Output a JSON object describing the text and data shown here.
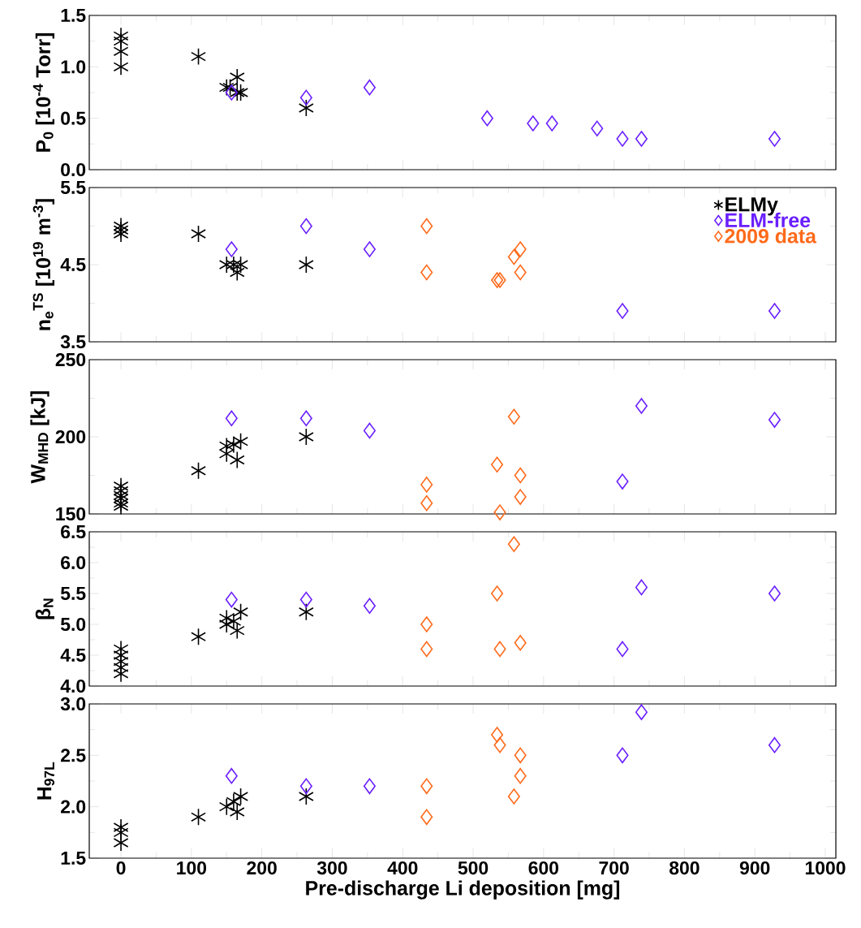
{
  "chart_data": [
    {
      "type": "scatter",
      "ylabel": "P$_{0}$ [10$^{-4}$ Torr]",
      "xlim": [
        -45,
        1015
      ],
      "xticks": [
        0,
        100,
        200,
        300,
        400,
        500,
        600,
        700,
        800,
        900,
        1000
      ],
      "ylim": [
        0,
        1.5
      ],
      "yticks": [
        {
          "value": 0,
          "label": "0.0"
        },
        0.5,
        {
          "value": 1,
          "label": "1.0"
        },
        1.5
      ],
      "tick_labels": "y",
      "series": [
        {
          "color": "#000000",
          "marker": "cross",
          "x": [
            0,
            0,
            0,
            0,
            110,
            150,
            155,
            165,
            165,
            170,
            263
          ],
          "values": [
            1.3,
            1.25,
            1.15,
            1.0,
            1.1,
            0.8,
            0.8,
            0.9,
            0.75,
            0.75,
            0.6
          ]
        },
        {
          "color": "#6a1fff",
          "marker": "diamond",
          "x": [
            157,
            263,
            353,
            520,
            585,
            612,
            676,
            712,
            739,
            928
          ],
          "values": [
            0.75,
            0.7,
            0.8,
            0.5,
            0.45,
            0.45,
            0.4,
            0.3,
            0.3,
            0.3
          ]
        }
      ]
    },
    {
      "type": "scatter",
      "ylabel": "n$_{e}$$^{TS}$ [10$^{19}$ m$^{-3}$]",
      "xlim": [
        -45,
        1015
      ],
      "xticks": [
        0,
        100,
        200,
        300,
        400,
        500,
        600,
        700,
        800,
        900,
        1000
      ],
      "ylim": [
        3.5,
        5.5
      ],
      "yticks": [
        3.5,
        4.5,
        5.5
      ],
      "tick_labels": "y",
      "legend": "top right",
      "series": [
        {
          "name": "ELMy",
          "color": "#000000",
          "marker": "cross",
          "x": [
            0,
            0,
            0,
            110,
            150,
            160,
            165,
            170,
            263
          ],
          "values": [
            5.0,
            4.95,
            4.9,
            4.9,
            4.5,
            4.5,
            4.4,
            4.5,
            4.5
          ]
        },
        {
          "name": "ELM-free",
          "color": "#6a1fff",
          "marker": "diamond",
          "x": [
            157,
            263,
            353,
            712,
            928
          ],
          "values": [
            4.7,
            5.0,
            4.7,
            3.9,
            3.9
          ]
        },
        {
          "name": "2009 data",
          "color": "#ff6a1a",
          "marker": "diamond",
          "x": [
            434,
            434,
            534,
            538,
            558,
            567,
            567
          ],
          "values": [
            5.0,
            4.4,
            4.3,
            4.3,
            4.6,
            4.7,
            4.4
          ]
        }
      ]
    },
    {
      "type": "scatter",
      "ylabel": "W$_{MHD}$ [kJ]",
      "xlim": [
        -45,
        1015
      ],
      "xticks": [
        0,
        100,
        200,
        300,
        400,
        500,
        600,
        700,
        800,
        900,
        1000
      ],
      "ylim": [
        150,
        250
      ],
      "yticks": [
        150,
        200,
        250
      ],
      "tick_labels": "y",
      "series": [
        {
          "color": "#000000",
          "marker": "cross",
          "x": [
            0,
            0,
            0,
            0,
            0,
            0,
            110,
            150,
            150,
            160,
            165,
            170,
            263
          ],
          "values": [
            168,
            165,
            162,
            160,
            157,
            155,
            178,
            189,
            194,
            195,
            185,
            197,
            200
          ]
        },
        {
          "color": "#6a1fff",
          "marker": "diamond",
          "x": [
            157,
            263,
            353,
            712,
            739,
            928
          ],
          "values": [
            212,
            212,
            204,
            171,
            220,
            211
          ]
        },
        {
          "color": "#ff6a1a",
          "marker": "diamond",
          "x": [
            434,
            434,
            534,
            538,
            558,
            567,
            567
          ],
          "values": [
            169,
            157,
            182,
            151,
            213,
            175,
            161
          ]
        }
      ]
    },
    {
      "type": "scatter",
      "ylabel": "β$_{N}$",
      "xlim": [
        -45,
        1015
      ],
      "xticks": [
        0,
        100,
        200,
        300,
        400,
        500,
        600,
        700,
        800,
        900,
        1000
      ],
      "ylim": [
        4,
        6.5
      ],
      "yticks": [
        {
          "value": 4,
          "label": "4.0"
        },
        4.5,
        {
          "value": 5,
          "label": "5.0"
        },
        5.5,
        {
          "value": 6,
          "label": "6.0"
        },
        6.5
      ],
      "tick_labels": "y",
      "series": [
        {
          "color": "#000000",
          "marker": "cross",
          "x": [
            0,
            0,
            0,
            0,
            0,
            110,
            150,
            150,
            160,
            165,
            170,
            263
          ],
          "values": [
            4.6,
            4.5,
            4.4,
            4.3,
            4.2,
            4.8,
            5.0,
            5.1,
            5.05,
            4.9,
            5.2,
            5.2
          ]
        },
        {
          "color": "#6a1fff",
          "marker": "diamond",
          "x": [
            157,
            263,
            353,
            712,
            739,
            928
          ],
          "values": [
            5.4,
            5.4,
            5.3,
            4.6,
            5.6,
            5.5
          ]
        },
        {
          "color": "#ff6a1a",
          "marker": "diamond",
          "x": [
            434,
            434,
            534,
            538,
            558,
            567
          ],
          "values": [
            5.0,
            4.6,
            5.5,
            4.6,
            6.3,
            4.7
          ]
        }
      ]
    },
    {
      "type": "scatter",
      "ylabel": "H$_{97L}$",
      "xlabel": "Pre-discharge Li deposition [mg]",
      "xlim": [
        -45,
        1015
      ],
      "xticks": [
        0,
        100,
        200,
        300,
        400,
        500,
        600,
        700,
        800,
        900,
        1000
      ],
      "ylim": [
        1.5,
        3
      ],
      "yticks": [
        1.5,
        {
          "value": 2,
          "label": "2.0"
        },
        2.5,
        {
          "value": 3,
          "label": "3.0"
        }
      ],
      "series": [
        {
          "color": "#000000",
          "marker": "cross",
          "x": [
            0,
            0,
            0,
            110,
            150,
            160,
            165,
            170,
            263
          ],
          "values": [
            1.8,
            1.75,
            1.65,
            1.9,
            2.0,
            2.05,
            1.95,
            2.1,
            2.1
          ]
        },
        {
          "color": "#6a1fff",
          "marker": "diamond",
          "x": [
            157,
            263,
            353,
            712,
            739,
            928
          ],
          "values": [
            2.3,
            2.2,
            2.2,
            2.5,
            2.92,
            2.6
          ]
        },
        {
          "color": "#ff6a1a",
          "marker": "diamond",
          "x": [
            434,
            434,
            534,
            538,
            558,
            567,
            567
          ],
          "values": [
            2.2,
            1.9,
            2.7,
            2.6,
            2.1,
            2.5,
            2.3
          ]
        }
      ]
    }
  ]
}
